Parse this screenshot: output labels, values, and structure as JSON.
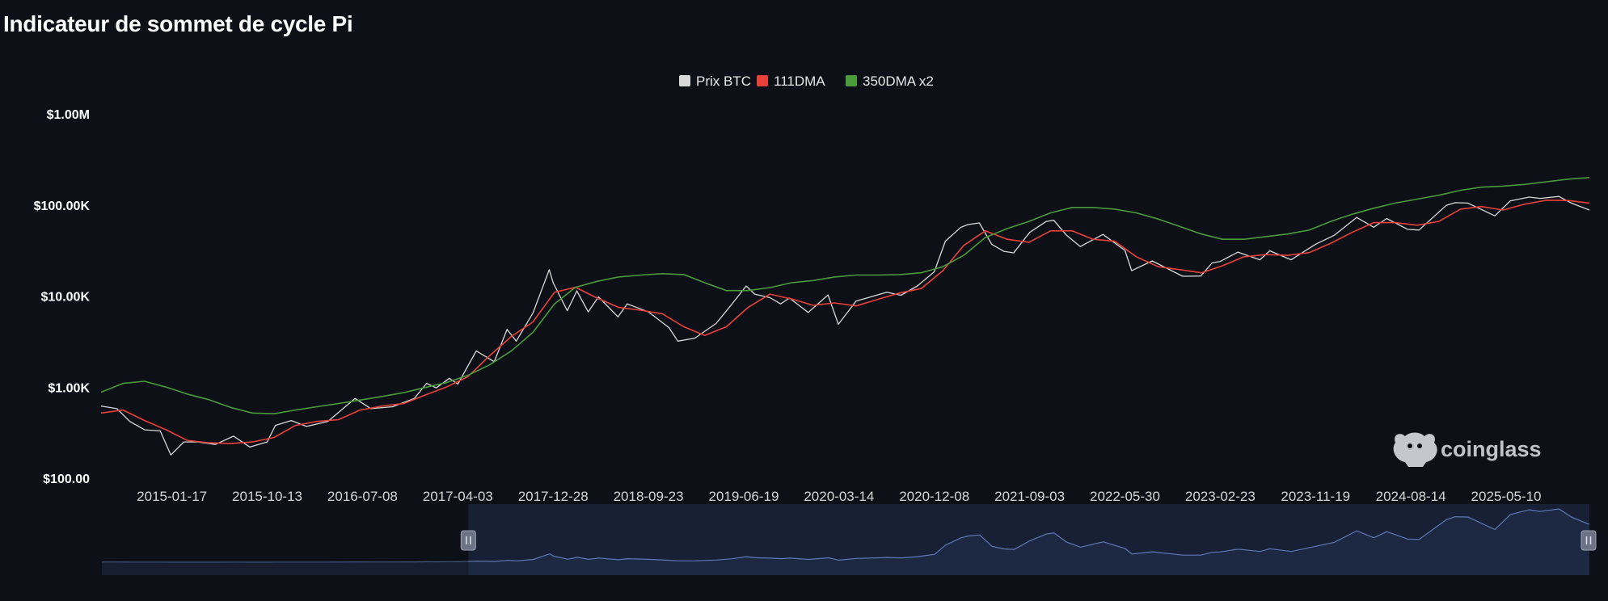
{
  "title": "Indicateur de sommet de cycle Pi",
  "watermark": "coinglass",
  "colors": {
    "background": "#0d1017",
    "price": "#d9d9d9",
    "dma111": "#e8413a",
    "dma350x2": "#4a9b3a",
    "navigator_fill": "#1e2a44",
    "navigator_line": "#5e79b5"
  },
  "chart_data": {
    "type": "line",
    "title": "Indicateur de sommet de cycle Pi",
    "y_scale": "log",
    "ylim": [
      100,
      1000000
    ],
    "y_ticks": [
      {
        "value": 1000000,
        "label": "$1.00M"
      },
      {
        "value": 100000,
        "label": "$100.00K"
      },
      {
        "value": 10000,
        "label": "$10.00K"
      },
      {
        "value": 1000,
        "label": "$1.00K"
      },
      {
        "value": 100,
        "label": "$100.00"
      }
    ],
    "x_range": [
      "2014-07-01",
      "2025-12-31"
    ],
    "x_ticks": [
      "2015-01-17",
      "2015-10-13",
      "2016-07-08",
      "2017-04-03",
      "2017-12-28",
      "2018-09-23",
      "2019-06-19",
      "2020-03-14",
      "2020-12-08",
      "2021-09-03",
      "2022-05-30",
      "2023-02-23",
      "2023-11-19",
      "2024-08-14",
      "2025-05-10"
    ],
    "legend_position": "top-center",
    "grid": false,
    "series": [
      {
        "name": "Prix BTC",
        "color": "#d9d9d9",
        "points": [
          [
            "2014-07-01",
            620
          ],
          [
            "2014-08-15",
            580
          ],
          [
            "2014-09-20",
            420
          ],
          [
            "2014-11-01",
            340
          ],
          [
            "2014-12-15",
            330
          ],
          [
            "2015-01-14",
            180
          ],
          [
            "2015-02-20",
            250
          ],
          [
            "2015-04-01",
            250
          ],
          [
            "2015-05-20",
            235
          ],
          [
            "2015-07-10",
            290
          ],
          [
            "2015-08-25",
            220
          ],
          [
            "2015-10-13",
            250
          ],
          [
            "2015-11-05",
            380
          ],
          [
            "2015-12-20",
            430
          ],
          [
            "2016-02-01",
            370
          ],
          [
            "2016-04-01",
            420
          ],
          [
            "2016-06-17",
            750
          ],
          [
            "2016-08-01",
            580
          ],
          [
            "2016-10-01",
            610
          ],
          [
            "2016-12-01",
            750
          ],
          [
            "2017-01-05",
            1100
          ],
          [
            "2017-02-01",
            980
          ],
          [
            "2017-03-10",
            1250
          ],
          [
            "2017-04-03",
            1080
          ],
          [
            "2017-05-25",
            2500
          ],
          [
            "2017-07-15",
            1900
          ],
          [
            "2017-08-20",
            4300
          ],
          [
            "2017-09-15",
            3200
          ],
          [
            "2017-11-01",
            6500
          ],
          [
            "2017-12-17",
            19500
          ],
          [
            "2017-12-28",
            14000
          ],
          [
            "2018-02-06",
            6900
          ],
          [
            "2018-03-05",
            11400
          ],
          [
            "2018-04-06",
            6700
          ],
          [
            "2018-05-05",
            9800
          ],
          [
            "2018-06-29",
            5900
          ],
          [
            "2018-07-25",
            8200
          ],
          [
            "2018-09-23",
            6700
          ],
          [
            "2018-11-20",
            4500
          ],
          [
            "2018-12-15",
            3200
          ],
          [
            "2019-02-01",
            3450
          ],
          [
            "2019-04-02",
            5000
          ],
          [
            "2019-05-15",
            8000
          ],
          [
            "2019-06-26",
            12900
          ],
          [
            "2019-07-20",
            10500
          ],
          [
            "2019-09-01",
            9600
          ],
          [
            "2019-10-01",
            8200
          ],
          [
            "2019-10-26",
            9500
          ],
          [
            "2019-12-18",
            6600
          ],
          [
            "2020-02-12",
            10300
          ],
          [
            "2020-03-12",
            4900
          ],
          [
            "2020-05-01",
            8800
          ],
          [
            "2020-07-27",
            11000
          ],
          [
            "2020-09-05",
            10200
          ],
          [
            "2020-10-21",
            12900
          ],
          [
            "2020-12-08",
            18500
          ],
          [
            "2021-01-08",
            40000
          ],
          [
            "2021-02-21",
            57000
          ],
          [
            "2021-03-13",
            61000
          ],
          [
            "2021-04-14",
            63500
          ],
          [
            "2021-05-19",
            37000
          ],
          [
            "2021-06-22",
            31000
          ],
          [
            "2021-07-20",
            29800
          ],
          [
            "2021-09-03",
            50000
          ],
          [
            "2021-10-20",
            66000
          ],
          [
            "2021-11-10",
            68000
          ],
          [
            "2021-12-15",
            47000
          ],
          [
            "2022-01-24",
            35000
          ],
          [
            "2022-03-29",
            47500
          ],
          [
            "2022-05-30",
            31700
          ],
          [
            "2022-06-18",
            19000
          ],
          [
            "2022-08-15",
            24300
          ],
          [
            "2022-11-09",
            16500
          ],
          [
            "2022-12-30",
            16600
          ],
          [
            "2023-01-31",
            23100
          ],
          [
            "2023-02-23",
            24000
          ],
          [
            "2023-04-14",
            30400
          ],
          [
            "2023-06-15",
            25000
          ],
          [
            "2023-07-13",
            31400
          ],
          [
            "2023-09-11",
            25000
          ],
          [
            "2023-11-19",
            37000
          ],
          [
            "2024-01-11",
            46500
          ],
          [
            "2024-03-14",
            73000
          ],
          [
            "2024-05-01",
            57000
          ],
          [
            "2024-06-07",
            71000
          ],
          [
            "2024-08-05",
            54000
          ],
          [
            "2024-09-06",
            53000
          ],
          [
            "2024-11-22",
            99000
          ],
          [
            "2024-12-17",
            106000
          ],
          [
            "2025-01-22",
            105000
          ],
          [
            "2025-04-08",
            76000
          ],
          [
            "2025-05-22",
            111000
          ],
          [
            "2025-07-14",
            122000
          ],
          [
            "2025-08-14",
            118000
          ],
          [
            "2025-10-06",
            124000
          ],
          [
            "2025-11-10",
            105000
          ],
          [
            "2025-12-31",
            88000
          ]
        ]
      },
      {
        "name": "111DMA",
        "color": "#e8413a",
        "points": [
          [
            "2014-07-01",
            520
          ],
          [
            "2014-09-01",
            560
          ],
          [
            "2014-11-01",
            430
          ],
          [
            "2015-01-01",
            340
          ],
          [
            "2015-03-01",
            260
          ],
          [
            "2015-05-01",
            245
          ],
          [
            "2015-07-01",
            240
          ],
          [
            "2015-09-01",
            250
          ],
          [
            "2015-11-01",
            280
          ],
          [
            "2016-01-01",
            380
          ],
          [
            "2016-03-01",
            420
          ],
          [
            "2016-05-01",
            440
          ],
          [
            "2016-07-01",
            560
          ],
          [
            "2016-09-01",
            620
          ],
          [
            "2016-11-01",
            660
          ],
          [
            "2017-01-01",
            820
          ],
          [
            "2017-03-01",
            1000
          ],
          [
            "2017-05-01",
            1300
          ],
          [
            "2017-07-01",
            2200
          ],
          [
            "2017-09-01",
            3600
          ],
          [
            "2017-11-01",
            5200
          ],
          [
            "2018-01-01",
            11000
          ],
          [
            "2018-03-01",
            12500
          ],
          [
            "2018-05-01",
            9500
          ],
          [
            "2018-07-01",
            7500
          ],
          [
            "2018-09-01",
            7000
          ],
          [
            "2018-11-01",
            6400
          ],
          [
            "2019-01-01",
            4600
          ],
          [
            "2019-03-01",
            3700
          ],
          [
            "2019-05-01",
            4600
          ],
          [
            "2019-07-01",
            7500
          ],
          [
            "2019-09-01",
            10500
          ],
          [
            "2019-11-01",
            9300
          ],
          [
            "2020-01-01",
            7900
          ],
          [
            "2020-03-01",
            8400
          ],
          [
            "2020-05-01",
            7800
          ],
          [
            "2020-07-01",
            9200
          ],
          [
            "2020-09-01",
            10800
          ],
          [
            "2020-11-01",
            12100
          ],
          [
            "2021-01-01",
            19000
          ],
          [
            "2021-03-01",
            36000
          ],
          [
            "2021-05-01",
            52000
          ],
          [
            "2021-07-01",
            42000
          ],
          [
            "2021-09-01",
            39000
          ],
          [
            "2021-11-01",
            52000
          ],
          [
            "2022-01-01",
            52000
          ],
          [
            "2022-03-01",
            42000
          ],
          [
            "2022-05-01",
            40000
          ],
          [
            "2022-07-01",
            27000
          ],
          [
            "2022-09-01",
            21000
          ],
          [
            "2022-11-01",
            19500
          ],
          [
            "2023-01-01",
            18000
          ],
          [
            "2023-03-01",
            21500
          ],
          [
            "2023-05-01",
            27000
          ],
          [
            "2023-07-01",
            28500
          ],
          [
            "2023-09-01",
            28000
          ],
          [
            "2023-11-01",
            30000
          ],
          [
            "2024-01-01",
            38000
          ],
          [
            "2024-03-01",
            50000
          ],
          [
            "2024-05-01",
            64000
          ],
          [
            "2024-07-01",
            64000
          ],
          [
            "2024-09-01",
            60000
          ],
          [
            "2024-11-01",
            66000
          ],
          [
            "2025-01-01",
            90000
          ],
          [
            "2025-03-01",
            96000
          ],
          [
            "2025-05-01",
            88000
          ],
          [
            "2025-07-01",
            102000
          ],
          [
            "2025-09-01",
            113000
          ],
          [
            "2025-11-01",
            112000
          ],
          [
            "2025-12-31",
            105000
          ]
        ]
      },
      {
        "name": "350DMA x2",
        "color": "#4a9b3a",
        "points": [
          [
            "2014-07-01",
            880
          ],
          [
            "2014-09-01",
            1100
          ],
          [
            "2014-11-01",
            1160
          ],
          [
            "2015-01-01",
            1000
          ],
          [
            "2015-03-01",
            840
          ],
          [
            "2015-05-01",
            730
          ],
          [
            "2015-07-01",
            600
          ],
          [
            "2015-09-01",
            520
          ],
          [
            "2015-11-01",
            510
          ],
          [
            "2016-01-01",
            560
          ],
          [
            "2016-03-01",
            610
          ],
          [
            "2016-05-01",
            660
          ],
          [
            "2016-07-01",
            720
          ],
          [
            "2016-09-01",
            790
          ],
          [
            "2016-11-01",
            870
          ],
          [
            "2017-01-01",
            990
          ],
          [
            "2017-03-01",
            1120
          ],
          [
            "2017-05-01",
            1350
          ],
          [
            "2017-07-01",
            1750
          ],
          [
            "2017-09-01",
            2500
          ],
          [
            "2017-11-01",
            4000
          ],
          [
            "2018-01-01",
            8200
          ],
          [
            "2018-03-01",
            12500
          ],
          [
            "2018-05-01",
            14500
          ],
          [
            "2018-07-01",
            16200
          ],
          [
            "2018-09-01",
            17000
          ],
          [
            "2018-11-01",
            17600
          ],
          [
            "2019-01-01",
            17200
          ],
          [
            "2019-03-01",
            14000
          ],
          [
            "2019-05-01",
            11500
          ],
          [
            "2019-07-01",
            11500
          ],
          [
            "2019-09-01",
            12400
          ],
          [
            "2019-11-01",
            14000
          ],
          [
            "2020-01-01",
            14800
          ],
          [
            "2020-03-01",
            16200
          ],
          [
            "2020-05-01",
            17000
          ],
          [
            "2020-07-01",
            17000
          ],
          [
            "2020-09-01",
            17200
          ],
          [
            "2020-11-01",
            18000
          ],
          [
            "2021-01-01",
            21000
          ],
          [
            "2021-03-01",
            28000
          ],
          [
            "2021-05-01",
            44000
          ],
          [
            "2021-07-01",
            55000
          ],
          [
            "2021-09-01",
            66000
          ],
          [
            "2021-11-01",
            82000
          ],
          [
            "2022-01-01",
            94000
          ],
          [
            "2022-03-01",
            94000
          ],
          [
            "2022-05-01",
            90000
          ],
          [
            "2022-07-01",
            82000
          ],
          [
            "2022-09-01",
            70000
          ],
          [
            "2022-11-01",
            58000
          ],
          [
            "2023-01-01",
            48000
          ],
          [
            "2023-03-01",
            42000
          ],
          [
            "2023-05-01",
            42000
          ],
          [
            "2023-07-01",
            45000
          ],
          [
            "2023-09-01",
            48000
          ],
          [
            "2023-11-01",
            53000
          ],
          [
            "2024-01-01",
            66000
          ],
          [
            "2024-03-01",
            79000
          ],
          [
            "2024-05-01",
            92000
          ],
          [
            "2024-07-01",
            105000
          ],
          [
            "2024-09-01",
            116000
          ],
          [
            "2024-11-01",
            128000
          ],
          [
            "2025-01-01",
            145000
          ],
          [
            "2025-03-01",
            157000
          ],
          [
            "2025-05-01",
            161000
          ],
          [
            "2025-07-01",
            168000
          ],
          [
            "2025-09-01",
            180000
          ],
          [
            "2025-11-01",
            192000
          ],
          [
            "2025-12-31",
            200000
          ]
        ]
      }
    ]
  }
}
